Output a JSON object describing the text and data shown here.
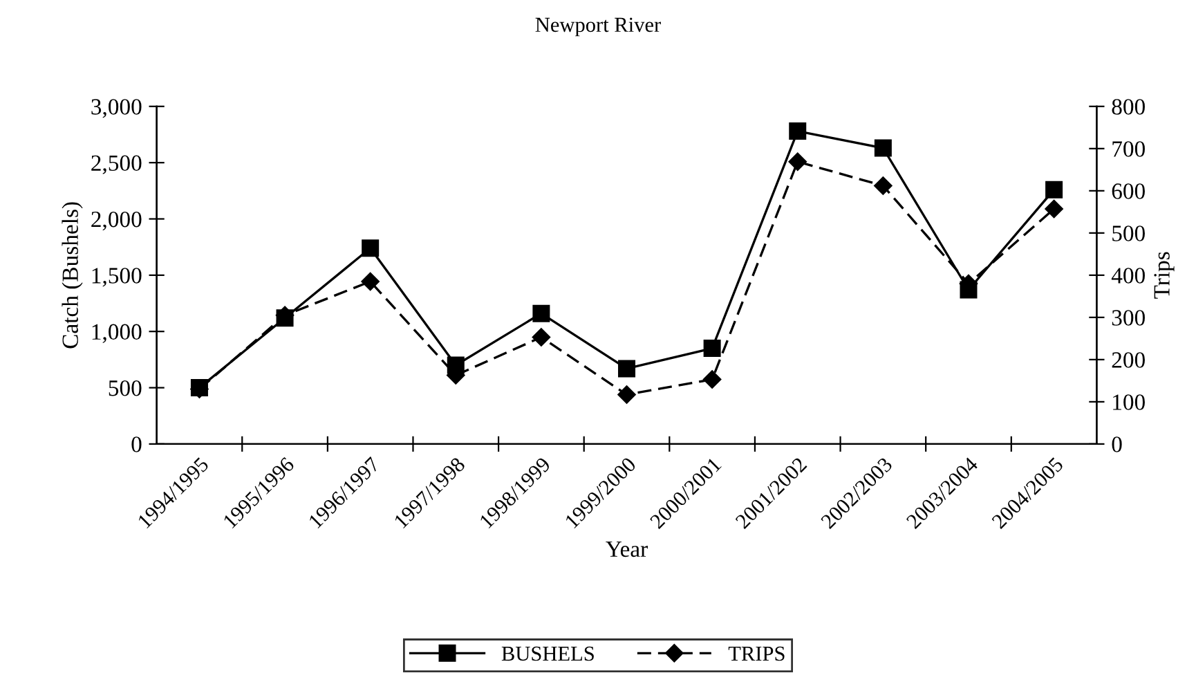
{
  "chart_data": {
    "type": "line",
    "title": "Newport River",
    "xlabel": "Year",
    "ylabel": "Catch (Bushels)",
    "y2label": "Trips",
    "categories": [
      "1994/1995",
      "1995/1996",
      "1996/1997",
      "1997/1998",
      "1998/1999",
      "1999/2000",
      "2000/2001",
      "2001/2002",
      "2002/2003",
      "2003/2004",
      "2004/2005"
    ],
    "series": [
      {
        "name": "BUSHELS",
        "color": "#000000",
        "marker": "square",
        "line_style": "solid",
        "values": [
          500,
          1120,
          1740,
          700,
          1160,
          670,
          850,
          2780,
          2630,
          1370,
          2260
        ]
      },
      {
        "name": "TRIPS",
        "color": "#000000",
        "marker": "diamond",
        "line_style": "dashed",
        "axis": "y2",
        "values": [
          130,
          305,
          385,
          163,
          253,
          117,
          153,
          669,
          612,
          380,
          557
        ]
      }
    ],
    "ylim": [
      0,
      3000
    ],
    "yticks": [
      {
        "value": 0,
        "label": "0"
      },
      {
        "value": 500,
        "label": "500"
      },
      {
        "value": 1000,
        "label": "1,000"
      },
      {
        "value": 1500,
        "label": "1,500"
      },
      {
        "value": 2000,
        "label": "2,000"
      },
      {
        "value": 2500,
        "label": "2,500"
      },
      {
        "value": 3000,
        "label": "3,000"
      }
    ],
    "y2lim": [
      0,
      800
    ],
    "y2ticks": [
      0,
      100,
      200,
      300,
      400,
      500,
      600,
      700,
      800
    ],
    "grid": false,
    "legend": "bottom"
  }
}
